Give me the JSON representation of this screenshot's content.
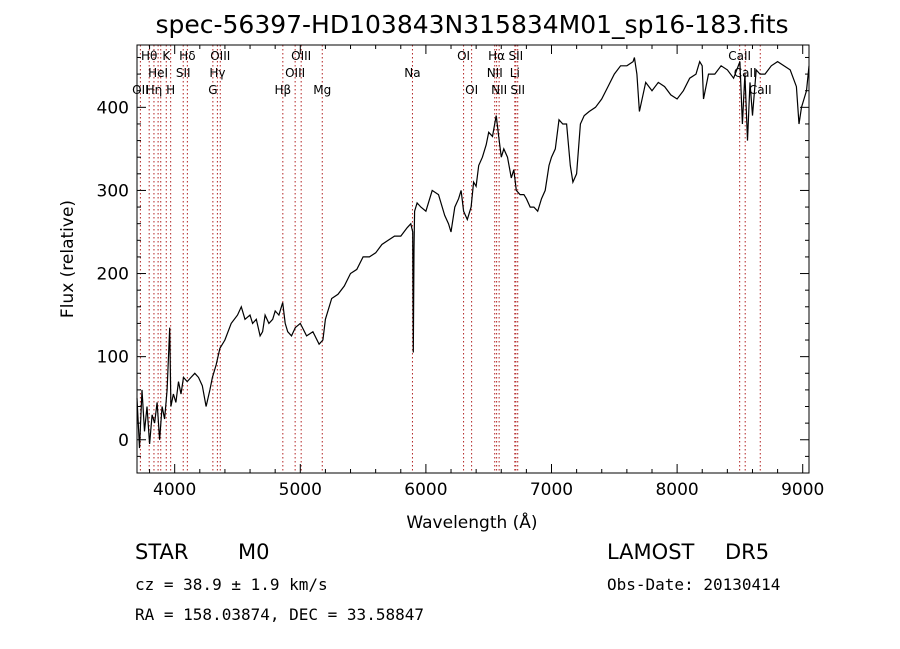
{
  "chart_data": {
    "type": "line",
    "title": "spec-56397-HD103843N315834M01_sp16-183.fits",
    "xlabel": "Wavelength (Å)",
    "ylabel": "Flux (relative)",
    "xlim": [
      3700,
      9050
    ],
    "ylim": [
      -40,
      475
    ],
    "xticks": [
      4000,
      5000,
      6000,
      7000,
      8000,
      9000
    ],
    "yticks": [
      0,
      100,
      200,
      300,
      400
    ],
    "line_color": "#000000",
    "marker_color": "#b22222",
    "series": [
      {
        "x": [
          3700,
          3720,
          3740,
          3760,
          3780,
          3800,
          3820,
          3840,
          3860,
          3880,
          3900,
          3920,
          3940,
          3960,
          3970,
          3990,
          4010,
          4030,
          4050,
          4070,
          4100,
          4130,
          4160,
          4190,
          4220,
          4250,
          4280,
          4300,
          4330,
          4360,
          4400,
          4450,
          4500,
          4530,
          4560,
          4600,
          4620,
          4650,
          4680,
          4700,
          4720,
          4750,
          4780,
          4800,
          4830,
          4860,
          4880,
          4900,
          4930,
          4960,
          5000,
          5050,
          5100,
          5150,
          5180,
          5200,
          5250,
          5300,
          5350,
          5400,
          5450,
          5500,
          5550,
          5600,
          5650,
          5700,
          5750,
          5800,
          5850,
          5880,
          5895,
          5900,
          5905,
          5910,
          5930,
          5960,
          6000,
          6050,
          6100,
          6150,
          6180,
          6200,
          6230,
          6260,
          6280,
          6300,
          6330,
          6360,
          6380,
          6400,
          6420,
          6450,
          6480,
          6500,
          6530,
          6560,
          6580,
          6600,
          6620,
          6650,
          6680,
          6700,
          6720,
          6750,
          6780,
          6800,
          6830,
          6860,
          6890,
          6920,
          6950,
          6980,
          7000,
          7030,
          7060,
          7090,
          7120,
          7150,
          7170,
          7200,
          7230,
          7260,
          7300,
          7350,
          7400,
          7450,
          7500,
          7550,
          7600,
          7650,
          7660,
          7680,
          7700,
          7750,
          7800,
          7850,
          7900,
          7950,
          8000,
          8050,
          8100,
          8150,
          8180,
          8200,
          8210,
          8250,
          8300,
          8350,
          8400,
          8450,
          8500,
          8520,
          8540,
          8560,
          8580,
          8600,
          8630,
          8660,
          8700,
          8750,
          8800,
          8850,
          8900,
          8950,
          8970,
          8990,
          9010,
          9030,
          9050
        ],
        "y": [
          50,
          -10,
          60,
          10,
          40,
          -5,
          30,
          20,
          45,
          0,
          40,
          25,
          60,
          135,
          40,
          55,
          45,
          70,
          55,
          75,
          70,
          75,
          80,
          75,
          65,
          40,
          60,
          75,
          90,
          110,
          120,
          140,
          150,
          160,
          145,
          150,
          140,
          145,
          125,
          130,
          150,
          140,
          145,
          155,
          150,
          165,
          140,
          130,
          125,
          135,
          140,
          125,
          130,
          115,
          120,
          145,
          170,
          175,
          185,
          200,
          205,
          220,
          220,
          225,
          235,
          240,
          245,
          245,
          255,
          260,
          250,
          105,
          230,
          275,
          285,
          280,
          275,
          300,
          295,
          270,
          260,
          250,
          280,
          290,
          300,
          275,
          265,
          280,
          310,
          305,
          330,
          340,
          355,
          370,
          365,
          390,
          365,
          340,
          350,
          340,
          315,
          325,
          300,
          295,
          295,
          290,
          280,
          280,
          275,
          290,
          300,
          330,
          340,
          350,
          385,
          380,
          380,
          330,
          310,
          320,
          380,
          390,
          395,
          400,
          410,
          425,
          440,
          450,
          450,
          455,
          460,
          440,
          395,
          430,
          420,
          430,
          425,
          415,
          410,
          420,
          435,
          440,
          455,
          450,
          410,
          440,
          440,
          450,
          445,
          435,
          455,
          380,
          440,
          360,
          430,
          390,
          445,
          440,
          440,
          450,
          455,
          450,
          445,
          425,
          380,
          400,
          410,
          420,
          450
        ]
      }
    ],
    "line_markers": [
      {
        "x": 3727,
        "label": "OII",
        "row": 3
      },
      {
        "x": 3797,
        "label": "Hθ",
        "row": 1
      },
      {
        "x": 3835,
        "label": "Hη",
        "row": 3
      },
      {
        "x": 3868,
        "label": "HeI",
        "row": 2
      },
      {
        "x": 3889,
        "label": "",
        "row": 0
      },
      {
        "x": 3933,
        "label": "K",
        "row": 1
      },
      {
        "x": 3968,
        "label": "H",
        "row": 3
      },
      {
        "x": 4068,
        "label": "SII",
        "row": 2
      },
      {
        "x": 4101,
        "label": "Hδ",
        "row": 1
      },
      {
        "x": 4304,
        "label": "G",
        "row": 3
      },
      {
        "x": 4340,
        "label": "Hγ",
        "row": 2
      },
      {
        "x": 4363,
        "label": "OIII",
        "row": 1
      },
      {
        "x": 4861,
        "label": "Hβ",
        "row": 3
      },
      {
        "x": 4959,
        "label": "OIII",
        "row": 2
      },
      {
        "x": 5007,
        "label": "OIII",
        "row": 1
      },
      {
        "x": 5175,
        "label": "Mg",
        "row": 3
      },
      {
        "x": 5893,
        "label": "Na",
        "row": 2
      },
      {
        "x": 6300,
        "label": "OI",
        "row": 1
      },
      {
        "x": 6364,
        "label": "OI",
        "row": 3
      },
      {
        "x": 6548,
        "label": "NII",
        "row": 2
      },
      {
        "x": 6563,
        "label": "Hα",
        "row": 1
      },
      {
        "x": 6583,
        "label": "NII",
        "row": 3
      },
      {
        "x": 6708,
        "label": "Li",
        "row": 2
      },
      {
        "x": 6716,
        "label": "SII",
        "row": 1
      },
      {
        "x": 6731,
        "label": "SII",
        "row": 3
      },
      {
        "x": 8498,
        "label": "CaII",
        "row": 1
      },
      {
        "x": 8542,
        "label": "CaII",
        "row": 2
      },
      {
        "x": 8662,
        "label": "CaII",
        "row": 3
      }
    ]
  },
  "info": {
    "class": "STAR",
    "subclass": "M0",
    "survey": "LAMOST",
    "release": "DR5",
    "cz": "cz = 38.9 ± 1.9 km/s",
    "obs_date": "Obs-Date: 20130414",
    "coords": "RA = 158.03874, DEC =  33.58847"
  }
}
